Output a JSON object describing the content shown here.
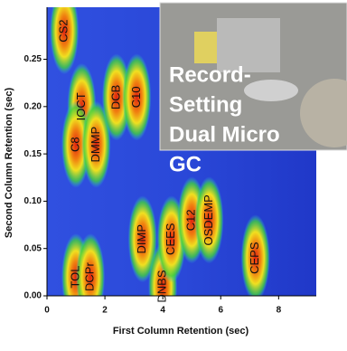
{
  "chart_data": {
    "type": "heatmap",
    "x_label": "First Column Retention (sec)",
    "y_label": "Second Column Retention (sec)",
    "xlim": [
      0,
      9.3
    ],
    "xticks": [
      0,
      2,
      4,
      6,
      8
    ],
    "ylim": [
      0,
      0.305
    ],
    "yticks": [
      {
        "value": 0,
        "label": "0.00"
      },
      {
        "value": 0.05,
        "label": "0.05"
      },
      {
        "value": 0.1,
        "label": "0.10"
      },
      {
        "value": 0.15,
        "label": "0.15"
      },
      {
        "value": 0.2,
        "label": "0.20"
      },
      {
        "value": 0.25,
        "label": "0.25"
      }
    ],
    "peaks": [
      {
        "label": "CS2",
        "x": 0.6,
        "y": 0.28
      },
      {
        "label": "IOCT",
        "x": 1.2,
        "y": 0.2
      },
      {
        "label": "C8",
        "x": 1.0,
        "y": 0.16
      },
      {
        "label": "DMMP",
        "x": 1.7,
        "y": 0.16
      },
      {
        "label": "DCB",
        "x": 2.4,
        "y": 0.21
      },
      {
        "label": "C10",
        "x": 3.1,
        "y": 0.21
      },
      {
        "label": "TOL",
        "x": 1.0,
        "y": 0.02
      },
      {
        "label": "DCPr",
        "x": 1.5,
        "y": 0.02
      },
      {
        "label": "DIMP",
        "x": 3.3,
        "y": 0.06
      },
      {
        "label": "DNBS",
        "x": 4.0,
        "y": 0.01
      },
      {
        "label": "CEES",
        "x": 4.3,
        "y": 0.06
      },
      {
        "label": "C12",
        "x": 5.0,
        "y": 0.08
      },
      {
        "label": "OSDEMP",
        "x": 5.6,
        "y": 0.08
      },
      {
        "label": "CEPS",
        "x": 7.2,
        "y": 0.04
      }
    ]
  },
  "inset": {
    "lines": [
      "Record-",
      "Setting",
      "Dual Micro",
      "GC"
    ]
  }
}
